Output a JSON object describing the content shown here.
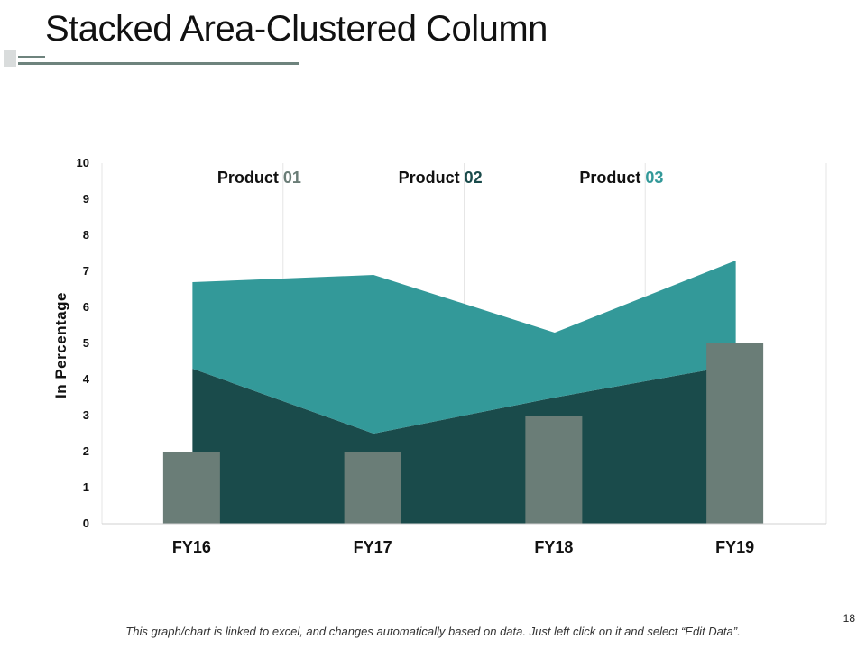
{
  "slide": {
    "title": "Stacked Area-Clustered Column",
    "footer": "This graph/chart is linked to excel, and changes automatically based on data.  Just left click on it and select “Edit Data”.",
    "page_number": "18"
  },
  "colors": {
    "product01": "#6a7d77",
    "product02": "#1a4b4b",
    "product03": "#339999",
    "grid": "#e6e6e6",
    "axis": "#d0d0d0",
    "deco": "#6e837d"
  },
  "chart_data": {
    "type": "bar",
    "title": "",
    "categories": [
      "FY16",
      "FY17",
      "FY18",
      "FY19"
    ],
    "ylabel": "In Percentage",
    "xlabel": "",
    "ylim": [
      0,
      10
    ],
    "yticks": [
      0,
      1,
      2,
      3,
      4,
      5,
      6,
      7,
      8,
      9,
      10
    ],
    "legend_position": "top",
    "series": [
      {
        "name": "Product 01",
        "prefix": "Product ",
        "suffix": "01",
        "kind": "column",
        "values": [
          2,
          2,
          3,
          5
        ]
      },
      {
        "name": "Product 02",
        "prefix": "Product ",
        "suffix": "02",
        "kind": "stacked-area",
        "values": [
          4.3,
          2.5,
          3.5,
          4.4
        ]
      },
      {
        "name": "Product 03",
        "prefix": "Product ",
        "suffix": "03",
        "kind": "stacked-area",
        "values": [
          2.4,
          4.4,
          1.8,
          2.9
        ]
      }
    ]
  }
}
